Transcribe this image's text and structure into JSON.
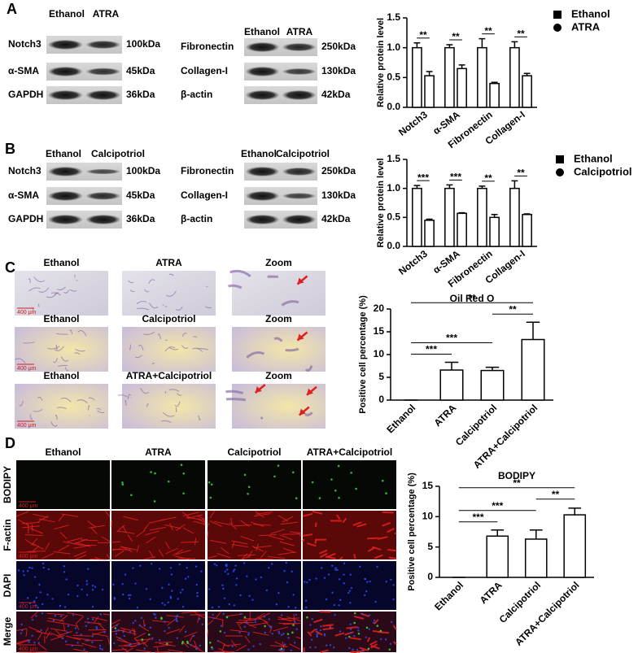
{
  "panels": [
    "A",
    "B",
    "C",
    "D"
  ],
  "blots": [
    {
      "columns": [
        "Ethanol",
        "ATRA"
      ],
      "rows": [
        {
          "label": "Notch3",
          "size": "100kDa"
        },
        {
          "label": "α-SMA",
          "size": "45kDa"
        },
        {
          "label": "GAPDH",
          "size": "36kDa"
        }
      ]
    },
    {
      "columns": [
        "Ethanol",
        "ATRA"
      ],
      "rows": [
        {
          "label": "Fibronectin",
          "size": "250kDa"
        },
        {
          "label": "Collagen-I",
          "size": "130kDa"
        },
        {
          "label": "β-actin",
          "size": "42kDa"
        }
      ]
    },
    {
      "columns": [
        "Ethanol",
        "Calcipotriol"
      ],
      "rows": [
        {
          "label": "Notch3",
          "size": "100kDa"
        },
        {
          "label": "α-SMA",
          "size": "45kDa"
        },
        {
          "label": "GAPDH",
          "size": "36kDa"
        }
      ]
    },
    {
      "columns": [
        "Ethanol",
        "Calcipotriol"
      ],
      "rows": [
        {
          "label": "Fibronectin",
          "size": "250kDa"
        },
        {
          "label": "Collagen-I",
          "size": "130kDa"
        },
        {
          "label": "β-actin",
          "size": "42kDa"
        }
      ]
    }
  ],
  "micrographs_c": {
    "scale": "400 μm",
    "rows": [
      [
        "Ethanol",
        "ATRA",
        "Zoom"
      ],
      [
        "Ethanol",
        "Calcipotriol",
        "Zoom"
      ],
      [
        "Ethanol",
        "ATRA+Calcipotriol",
        "Zoom"
      ]
    ]
  },
  "micrographs_d": {
    "scale": "400 μm",
    "columns": [
      "Ethanol",
      "ATRA",
      "Calcipotriol",
      "ATRA+Calcipotriol"
    ],
    "rows": [
      "BODIPY",
      "F-actin",
      "DAPI",
      "Merge"
    ]
  },
  "chart_data": [
    {
      "type": "grouped_bar",
      "y_label": "Relative protein level",
      "categories": [
        "Notch3",
        "α-SMA",
        "Fibronectin",
        "Collagen-I"
      ],
      "series": [
        {
          "name": "Ethanol",
          "marker": "square",
          "color": "#ffffff",
          "values": [
            1.0,
            1.0,
            1.0,
            1.0
          ],
          "errors": [
            0.08,
            0.05,
            0.15,
            0.1
          ]
        },
        {
          "name": "ATRA",
          "marker": "circle",
          "color": "#ffffff",
          "values": [
            0.53,
            0.65,
            0.4,
            0.53
          ],
          "errors": [
            0.07,
            0.06,
            0.02,
            0.04
          ]
        }
      ],
      "significance": [
        "**",
        "**",
        "**",
        "**"
      ],
      "edgecolor": "#000000",
      "ylim": [
        0,
        1.5
      ],
      "yticks": [
        {
          "value": 0,
          "label": "0.0"
        },
        0.5,
        {
          "value": 1,
          "label": "1.0"
        },
        1.5
      ]
    },
    {
      "type": "grouped_bar",
      "y_label": "Relative protein level",
      "categories": [
        "Notch3",
        "α-SMA",
        "Fibronectin",
        "Collagen-I"
      ],
      "series": [
        {
          "name": "Ethanol",
          "marker": "square",
          "color": "#ffffff",
          "values": [
            1.0,
            1.0,
            1.0,
            1.0
          ],
          "errors": [
            0.05,
            0.06,
            0.04,
            0.13
          ]
        },
        {
          "name": "Calcipotriol",
          "marker": "circle",
          "color": "#ffffff",
          "values": [
            0.45,
            0.57,
            0.5,
            0.55
          ],
          "errors": [
            0.02,
            0.01,
            0.05,
            0.01
          ]
        }
      ],
      "significance": [
        "***",
        "***",
        "**",
        "**"
      ],
      "edgecolor": "#000000",
      "ylim": [
        0,
        1.5
      ],
      "yticks": [
        {
          "value": 0,
          "label": "0.0"
        },
        0.5,
        {
          "value": 1,
          "label": "1.0"
        },
        1.5
      ]
    },
    {
      "type": "bar",
      "title": "Oil Red O",
      "y_label": "Positive cell percentage  (%)",
      "categories": [
        "Ethanol",
        "ATRA",
        "Calcipotriol",
        "ATRA+Calcipotriol"
      ],
      "values": [
        0,
        6.6,
        6.5,
        13.3
      ],
      "errors": [
        0,
        1.7,
        0.7,
        3.8
      ],
      "color": "#ffffff",
      "edgecolor": "#000000",
      "significance": [
        {
          "label": "***",
          "between": [
            "Ethanol",
            "ATRA"
          ]
        },
        {
          "label": "***",
          "between": [
            "Ethanol",
            "Calcipotriol"
          ]
        },
        {
          "label": "**",
          "between": [
            "Calcipotriol",
            "ATRA+Calcipotriol"
          ]
        },
        {
          "label": "**",
          "between": [
            "Ethanol",
            "ATRA+Calcipotriol"
          ]
        }
      ],
      "ylim": [
        0,
        20
      ],
      "yticks": [
        0,
        5,
        10,
        15,
        20
      ]
    },
    {
      "type": "bar",
      "title": "BODIPY",
      "y_label": "Positive cell percentage (%)",
      "categories": [
        "Ethanol",
        "ATRA",
        "Calcipotriol",
        "ATRA+Calcipotriol"
      ],
      "values": [
        0,
        6.8,
        6.3,
        10.3
      ],
      "errors": [
        0,
        1.0,
        1.5,
        1.1
      ],
      "color": "#ffffff",
      "edgecolor": "#000000",
      "significance": [
        {
          "label": "***",
          "between": [
            "Ethanol",
            "ATRA"
          ]
        },
        {
          "label": "***",
          "between": [
            "Ethanol",
            "Calcipotriol"
          ]
        },
        {
          "label": "**",
          "between": [
            "Calcipotriol",
            "ATRA+Calcipotriol"
          ]
        },
        {
          "label": "**",
          "between": [
            "Ethanol",
            "ATRA+Calcipotriol"
          ]
        }
      ],
      "ylim": [
        0,
        15
      ],
      "yticks": [
        0,
        5,
        10,
        15
      ]
    }
  ]
}
